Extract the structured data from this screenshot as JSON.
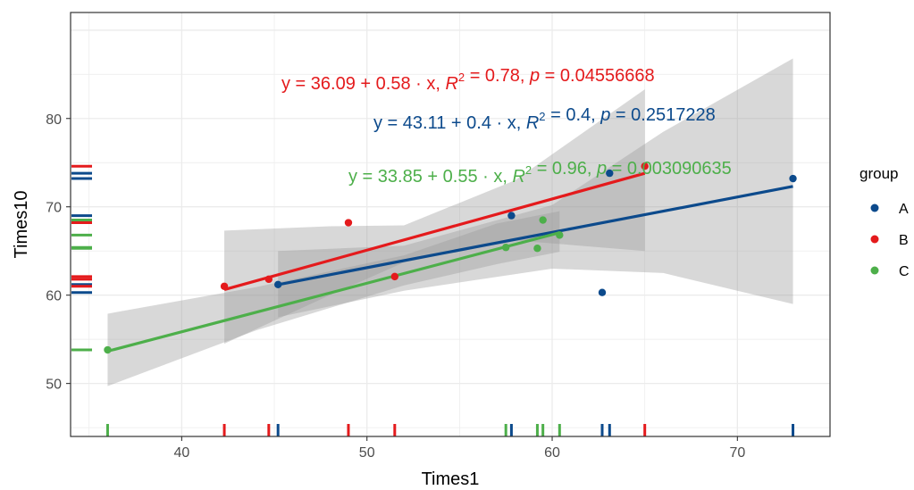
{
  "chart_data": {
    "type": "scatter",
    "xlabel": "Times1",
    "ylabel": "Times10",
    "xlim": [
      34,
      75
    ],
    "ylim": [
      44,
      92
    ],
    "x_ticks": [
      40,
      50,
      60,
      70
    ],
    "y_ticks": [
      50,
      60,
      70,
      80
    ],
    "grid": true,
    "legend": {
      "title": "group",
      "position": "right"
    },
    "series": [
      {
        "name": "A",
        "color": "#0c4a8c",
        "points": [
          [
            45.2,
            61.2
          ],
          [
            57.8,
            69.0
          ],
          [
            62.7,
            60.3
          ],
          [
            63.1,
            73.8
          ],
          [
            73.0,
            73.2
          ]
        ],
        "fit": {
          "intercept": 43.11,
          "slope": 0.4,
          "x_range": [
            45.2,
            73.0
          ]
        },
        "band": [
          [
            45.2,
            57.5,
            65.0
          ],
          [
            52,
            60.5,
            65.6
          ],
          [
            60,
            63.0,
            70.2
          ],
          [
            66,
            62.5,
            78.5
          ],
          [
            73.0,
            59.0,
            86.8
          ]
        ],
        "equation": {
          "lhs": "y = 43.11 + 0.4 · x,",
          "r2": "= 0.4,",
          "p": "= 0.2517228"
        }
      },
      {
        "name": "B",
        "color": "#e41a1c",
        "points": [
          [
            42.3,
            61.0
          ],
          [
            44.7,
            61.8
          ],
          [
            49.0,
            68.2
          ],
          [
            51.5,
            62.1
          ],
          [
            65.0,
            74.6
          ]
        ],
        "fit": {
          "intercept": 36.09,
          "slope": 0.58,
          "x_range": [
            42.3,
            65.0
          ]
        },
        "band": [
          [
            42.3,
            54.5,
            67.3
          ],
          [
            48,
            60.0,
            67.8
          ],
          [
            52,
            63.7,
            67.9
          ],
          [
            58,
            66.2,
            73.0
          ],
          [
            65.0,
            65.0,
            83.3
          ]
        ],
        "equation": {
          "lhs": "y = 36.09 + 0.58 · x,",
          "r2": "= 0.78,",
          "p": "= 0.04556668"
        }
      },
      {
        "name": "C",
        "color": "#4daf4a",
        "points": [
          [
            36.0,
            53.8
          ],
          [
            57.5,
            65.4
          ],
          [
            59.2,
            65.3
          ],
          [
            59.5,
            68.5
          ],
          [
            60.4,
            66.8
          ]
        ],
        "fit": {
          "intercept": 33.85,
          "slope": 0.55,
          "x_range": [
            36.0,
            60.4
          ]
        },
        "band": [
          [
            36.0,
            49.7,
            57.9
          ],
          [
            44,
            56.0,
            60.9
          ],
          [
            52,
            61.1,
            64.5
          ],
          [
            57,
            63.5,
            68.1
          ],
          [
            60.4,
            64.9,
            69.5
          ]
        ],
        "equation": {
          "lhs": "y = 33.85 + 0.55 · x,",
          "r2": "= 0.96,",
          "p": "= 0.003090635"
        }
      }
    ]
  }
}
